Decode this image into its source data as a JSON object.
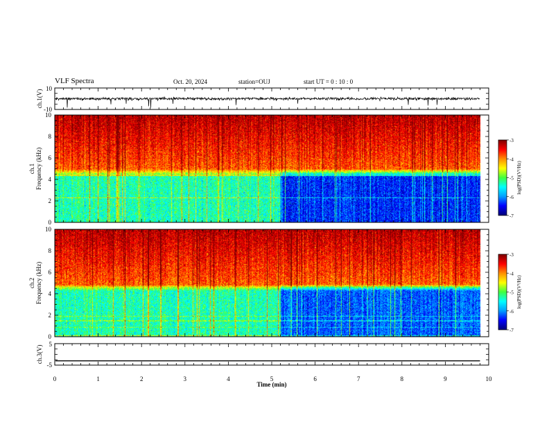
{
  "header": {
    "title": "VLF Spectra",
    "date": "Oct. 20, 2024",
    "station": "station=OUJ",
    "start": "start  UT =   0 : 10 : 0"
  },
  "colors": {
    "colormap": [
      "#00007a",
      "#0000ff",
      "#00a0ff",
      "#00ffff",
      "#40ff40",
      "#ffff00",
      "#ff9000",
      "#ff0000",
      "#800000"
    ],
    "trace": "#000000"
  },
  "chart_data": [
    {
      "type": "line",
      "panel": "ch1-waveform",
      "ylabel": "ch.1(V)",
      "ylim": [
        -10,
        10
      ],
      "yticklabels": [
        "10",
        "-10"
      ],
      "x_range_min": [
        0,
        9.8
      ],
      "description_values": {
        "baseline_v": 0.0,
        "noise_amplitude_v": 2.5,
        "spike_min_v": -9
      }
    },
    {
      "type": "heatmap",
      "panel": "ch1-spectrogram",
      "ylabel": "ch.1\nFrequency (kHz)",
      "ylim": [
        0,
        10
      ],
      "yticks": [
        0,
        2,
        4,
        6,
        8,
        10
      ],
      "xlim": [
        0,
        10
      ],
      "data_end_min": 9.8,
      "colorbar": {
        "label": "log(PSD)(V²/Hz)",
        "range": [
          -7,
          -3
        ],
        "ticks": [
          "-3",
          "-4",
          "-5",
          "-6",
          "-7"
        ]
      },
      "summary": {
        "low_band_khz": [
          0,
          5
        ],
        "high_band_khz": [
          5,
          10
        ],
        "log_psd_low_before_5min": -5.3,
        "log_psd_low_after_5min": -6.4,
        "log_psd_high": -3.8
      }
    },
    {
      "type": "heatmap",
      "panel": "ch2-spectrogram",
      "ylabel": "ch.2\nFrequency (kHz)",
      "ylim": [
        0,
        10
      ],
      "yticks": [
        0,
        2,
        4,
        6,
        8,
        10
      ],
      "xlim": [
        0,
        10
      ],
      "data_end_min": 9.8,
      "colorbar": {
        "label": "log(PSD)(V²/Hz)",
        "range": [
          -7,
          -3
        ],
        "ticks": [
          "-3",
          "-4",
          "-5",
          "-6",
          "-7"
        ]
      },
      "summary": {
        "low_band_khz": [
          0,
          5
        ],
        "high_band_khz": [
          5,
          10
        ],
        "log_psd_low_before_5min": -5.3,
        "log_psd_low_after_5min": -6.2,
        "log_psd_high": -3.8
      }
    },
    {
      "type": "line",
      "panel": "ch3-waveform",
      "ylabel": "ch.3(V)",
      "ylim": [
        -5,
        5
      ],
      "yticklabels": [
        "5",
        "-5"
      ],
      "x_range_min": [
        0,
        9.8
      ],
      "description_values": {
        "baseline_v": -3.0
      }
    }
  ],
  "xaxis": {
    "label": "Time (min)",
    "ticks": [
      "0",
      "1",
      "2",
      "3",
      "4",
      "5",
      "6",
      "7",
      "8",
      "9",
      "10"
    ],
    "range": [
      0,
      10
    ]
  }
}
